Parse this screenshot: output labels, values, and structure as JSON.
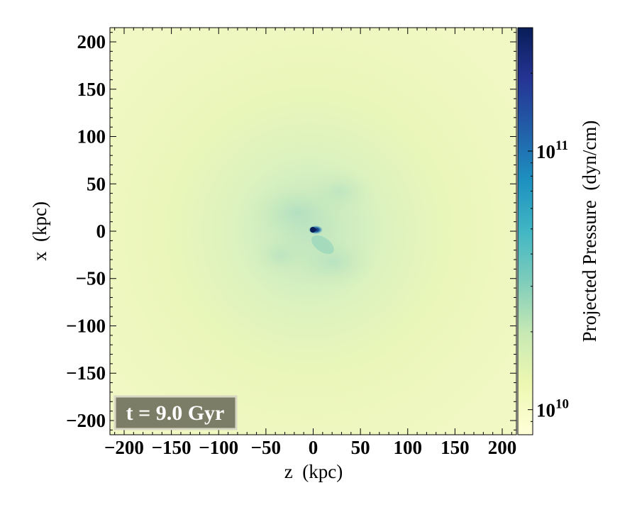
{
  "chart_data": {
    "type": "heatmap",
    "xlabel": "z  (kpc)",
    "ylabel": "x  (kpc)",
    "xlim": [
      -215,
      215
    ],
    "ylim": [
      -215,
      215
    ],
    "x_ticks": [
      -200,
      -150,
      -100,
      -50,
      0,
      50,
      100,
      150,
      200
    ],
    "x_tick_labels": [
      "−200",
      "−150",
      "−100",
      "−50",
      "0",
      "50",
      "100",
      "150",
      "200"
    ],
    "y_ticks": [
      200,
      150,
      100,
      50,
      0,
      -50,
      -100,
      -150,
      -200
    ],
    "y_tick_labels": [
      "200",
      "150",
      "100",
      "50",
      "0",
      "−50",
      "−100",
      "−150",
      "−200"
    ],
    "colorbar": {
      "label": "Projected Pressure  (dyn/cm)",
      "scale": "log",
      "range": [
        8000000000.0,
        300000000000.0
      ],
      "ticks": [
        10000000000.0,
        100000000000.0
      ],
      "tick_labels": [
        {
          "base": "10",
          "exp": "10"
        },
        {
          "base": "10",
          "exp": "11"
        }
      ],
      "colormap": [
        "#ffffd9",
        "#edf8b1",
        "#c7e9b4",
        "#7fcdbb",
        "#41b6c4",
        "#1d91c0",
        "#225ea8",
        "#253494",
        "#081d58"
      ]
    },
    "annotation": {
      "text": "t = 9.0 Gyr",
      "position": "bottom-left",
      "background": "#7c7d66",
      "border": "#d8d8c4"
    },
    "features": [
      {
        "x": 0,
        "y": 0,
        "level": "peak"
      }
    ]
  }
}
